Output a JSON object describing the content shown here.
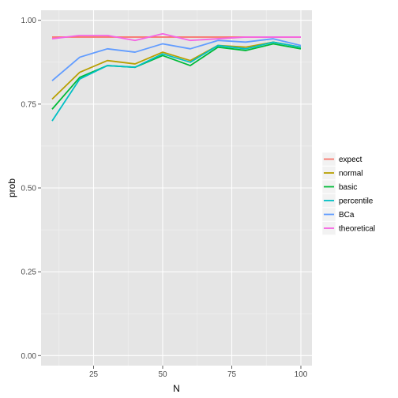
{
  "chart_data": {
    "type": "line",
    "title": "",
    "xlabel": "N",
    "ylabel": "prob",
    "xlim": [
      6,
      104
    ],
    "ylim": [
      -0.03,
      1.03
    ],
    "x_ticks": [
      25,
      50,
      75,
      100
    ],
    "x_tick_labels": [
      "25",
      "50",
      "75",
      "100"
    ],
    "y_ticks": [
      0,
      0.25,
      0.5,
      0.75,
      1
    ],
    "y_tick_labels": [
      "0.00",
      "0.25",
      "0.50",
      "0.75",
      "1.00"
    ],
    "grid": true,
    "legend_position": "right",
    "x": [
      10,
      20,
      30,
      40,
      50,
      60,
      70,
      80,
      90,
      100
    ],
    "series": [
      {
        "name": "expect",
        "color": "#F8766D",
        "values": [
          0.95,
          0.95,
          0.95,
          0.95,
          0.95,
          0.95,
          0.95,
          0.95,
          0.95,
          0.95
        ]
      },
      {
        "name": "normal",
        "color": "#B79F00",
        "values": [
          0.765,
          0.845,
          0.88,
          0.87,
          0.905,
          0.88,
          0.925,
          0.92,
          0.935,
          0.92
        ]
      },
      {
        "name": "basic",
        "color": "#00BA38",
        "values": [
          0.735,
          0.83,
          0.865,
          0.86,
          0.895,
          0.865,
          0.92,
          0.91,
          0.93,
          0.915
        ]
      },
      {
        "name": "percentile",
        "color": "#00BFC4",
        "values": [
          0.7,
          0.825,
          0.865,
          0.86,
          0.9,
          0.875,
          0.925,
          0.915,
          0.935,
          0.92
        ]
      },
      {
        "name": "BCa",
        "color": "#619CFF",
        "values": [
          0.82,
          0.89,
          0.915,
          0.905,
          0.93,
          0.915,
          0.94,
          0.935,
          0.945,
          0.925
        ]
      },
      {
        "name": "theoretical",
        "color": "#F564E3",
        "values": [
          0.945,
          0.955,
          0.955,
          0.94,
          0.96,
          0.94,
          0.945,
          0.95,
          0.95,
          0.95
        ]
      }
    ]
  }
}
